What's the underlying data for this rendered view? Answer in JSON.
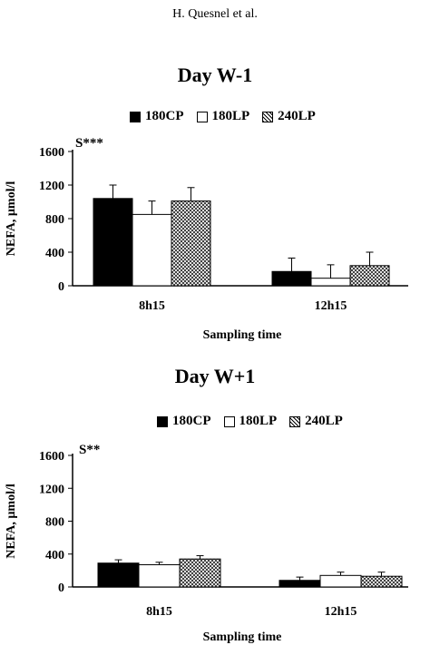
{
  "header": {
    "running_head": "H. Quesnel et al."
  },
  "chart_data": [
    {
      "type": "bar",
      "title": "Day W-1",
      "significance": "S***",
      "xlabel": "Sampling time",
      "ylabel": "NEFA, µmol/l",
      "ylim": [
        0,
        1600
      ],
      "yticks": [
        "0",
        "400",
        "800",
        "1200",
        "1600"
      ],
      "categories": [
        "8h15",
        "12h15"
      ],
      "legend_position": "top",
      "grid": false,
      "series": [
        {
          "name": "180CP",
          "fill": "solid",
          "color": "#000000",
          "values": [
            1040,
            170
          ],
          "errors": [
            160,
            160
          ]
        },
        {
          "name": "180LP",
          "fill": "open",
          "color": "#ffffff",
          "values": [
            850,
            90
          ],
          "errors": [
            160,
            160
          ]
        },
        {
          "name": "240LP",
          "fill": "crosshatch",
          "color": "#bbbbbb",
          "values": [
            1010,
            240
          ],
          "errors": [
            160,
            160
          ]
        }
      ]
    },
    {
      "type": "bar",
      "title": "Day W+1",
      "significance": "S**",
      "xlabel": "Sampling time",
      "ylabel": "NEFA, µmol/l",
      "ylim": [
        0,
        1600
      ],
      "yticks": [
        "0",
        "400",
        "800",
        "1200",
        "1600"
      ],
      "categories": [
        "8h15",
        "12h15"
      ],
      "legend_position": "top",
      "grid": false,
      "series": [
        {
          "name": "180CP",
          "fill": "solid",
          "color": "#000000",
          "values": [
            290,
            80
          ],
          "errors": [
            40,
            40
          ]
        },
        {
          "name": "180LP",
          "fill": "open",
          "color": "#ffffff",
          "values": [
            270,
            140
          ],
          "errors": [
            30,
            40
          ]
        },
        {
          "name": "240LP",
          "fill": "crosshatch",
          "color": "#bbbbbb",
          "values": [
            340,
            130
          ],
          "errors": [
            40,
            50
          ]
        }
      ]
    }
  ]
}
